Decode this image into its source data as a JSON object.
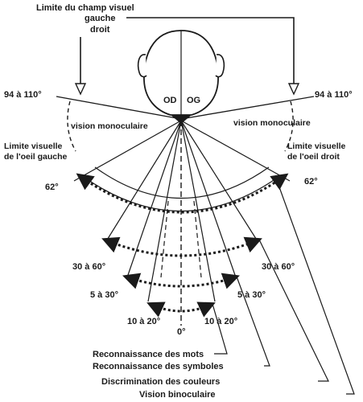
{
  "title": {
    "line1": "Limite du champ visuel",
    "line2": "gauche",
    "line3": "droit"
  },
  "head": {
    "left_eye": "OD",
    "right_eye": "OG"
  },
  "angles": {
    "horizon_left": "94 à 110°",
    "horizon_right": "94 à 110°",
    "outer_left": "62°",
    "outer_right": "62°",
    "a30_60_left": "30 à 60°",
    "a30_60_right": "30 à 60°",
    "a5_30_left": "5 à 30°",
    "a5_30_right": "5 à 30°",
    "a10_20_left": "10 à 20°",
    "a10_20_right": "10 à 20°",
    "center": "0°"
  },
  "zones": {
    "mono_left": "vision monoculaire",
    "mono_right": "vision monoculaire",
    "limit_left_1": "Limite visuelle",
    "limit_left_2": "de l'oeil gauche",
    "limit_right_1": "Limite visuelle",
    "limit_right_2": "de l'oeil droit"
  },
  "legend": {
    "words": "Reconnaissance des mots",
    "symbols": "Reconnaissance des symboles",
    "colors": "Discrimination des couleurs",
    "binocular": "Vision binoculaire"
  },
  "colors": {
    "ink": "#1a1a1a",
    "background": "#ffffff"
  }
}
